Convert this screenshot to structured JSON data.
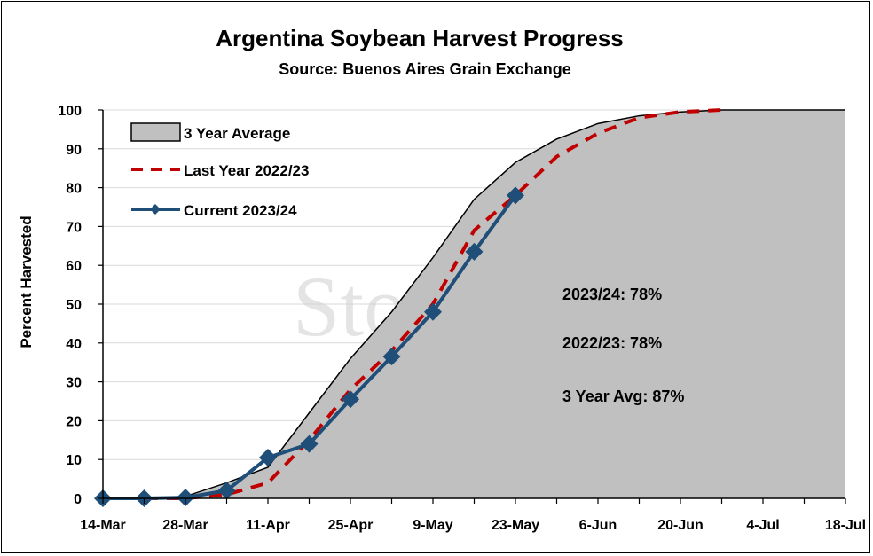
{
  "chart_data": {
    "type": "area",
    "title": "Argentina Soybean Harvest Progress",
    "subtitle": "Source: Buenos Aires Grain Exchange",
    "xlabel": "",
    "ylabel": "Percent Harvested",
    "ylim": [
      0,
      100
    ],
    "yticks": [
      0,
      10,
      20,
      30,
      40,
      50,
      60,
      70,
      80,
      90,
      100
    ],
    "xticks": [
      "14-Mar",
      "28-Mar",
      "11-Apr",
      "25-Apr",
      "9-May",
      "23-May",
      "6-Jun",
      "20-Jun",
      "4-Jul",
      "18-Jul"
    ],
    "x_week_count": 19,
    "grid": "horizontal",
    "legend_position": "top-left",
    "series": [
      {
        "name": "3 Year Average",
        "kind": "area",
        "fill": "#c0c0c0",
        "stroke": "#000000",
        "values": [
          0,
          0,
          0.5,
          4,
          8,
          22,
          36,
          48,
          62,
          77,
          86.5,
          92.5,
          96.5,
          98.5,
          99.5,
          100,
          100,
          100,
          100
        ]
      },
      {
        "name": "Last Year 2022/23",
        "kind": "dashed-line",
        "stroke": "#c00000",
        "values": [
          0,
          0,
          0,
          1,
          4,
          15,
          28,
          38,
          50,
          69,
          78,
          88,
          94,
          98,
          99.5,
          100
        ]
      },
      {
        "name": "Current 2023/24",
        "kind": "line-marker",
        "stroke": "#1f4e79",
        "values": [
          0,
          0,
          0.2,
          2,
          10.5,
          14,
          25.5,
          36.5,
          48,
          63.5,
          78
        ]
      }
    ],
    "annotations": [
      "2023/24: 78%",
      "2022/23: 78%",
      "3 Year Avg: 87%"
    ],
    "watermark": "StoneX"
  }
}
